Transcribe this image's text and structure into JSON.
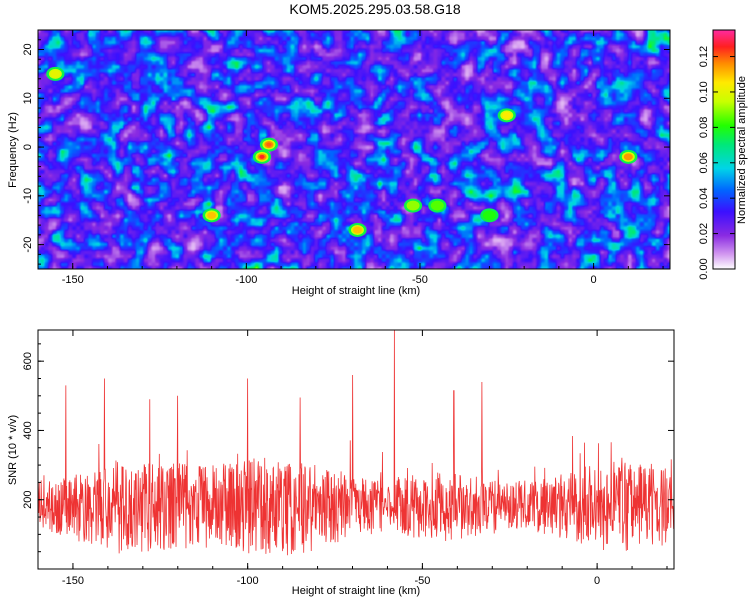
{
  "title": "KOM5.2025.295.03.58.G18",
  "chart_data": [
    {
      "type": "heatmap",
      "xlabel": "Height of straight line (km)",
      "ylabel": "Frequency (Hz)",
      "xlim": [
        -160,
        22
      ],
      "ylim": [
        -25,
        24
      ],
      "xticks": [
        -150,
        -100,
        -50,
        0
      ],
      "yticks": [
        -20,
        -10,
        0,
        10,
        20
      ],
      "colorbar": {
        "label": "Normalized spectral amplitude",
        "range": [
          0,
          0.135
        ],
        "ticks": [
          0.0,
          0.02,
          0.04,
          0.06,
          0.08,
          0.1,
          0.12
        ],
        "tick_labels": [
          "0.00",
          "0.02",
          "0.04",
          "0.06",
          "0.08",
          "0.10",
          "0.12"
        ]
      },
      "hotspots": [
        {
          "x": -95.5,
          "y": -2,
          "value": 0.125
        },
        {
          "x": -93.5,
          "y": 0.5,
          "value": 0.12
        },
        {
          "x": -110,
          "y": -14,
          "value": 0.11
        },
        {
          "x": -68,
          "y": -17,
          "value": 0.11
        },
        {
          "x": 10,
          "y": -2,
          "value": 0.115
        },
        {
          "x": -25,
          "y": 6.5,
          "value": 0.105
        },
        {
          "x": -155,
          "y": 15,
          "value": 0.1
        },
        {
          "x": -52,
          "y": -12,
          "value": 0.09
        },
        {
          "x": -45,
          "y": -12,
          "value": 0.085
        },
        {
          "x": -30,
          "y": -14,
          "value": 0.08
        }
      ]
    },
    {
      "type": "line",
      "xlabel": "Height of straight line (km)",
      "ylabel": "SNR (10 * v/v)",
      "xlim": [
        -160,
        22
      ],
      "ylim": [
        0,
        690
      ],
      "xticks": [
        -150,
        -100,
        -50,
        0
      ],
      "yticks": [
        200,
        400,
        600
      ],
      "series": [
        {
          "color": "#ee3333",
          "peaks": [
            {
              "x": -58,
              "y": 690
            },
            {
              "x": -100,
              "y": 550
            },
            {
              "x": -141,
              "y": 550
            },
            {
              "x": -70,
              "y": 560
            },
            {
              "x": -41,
              "y": 515
            },
            {
              "x": -152,
              "y": 530
            },
            {
              "x": -33,
              "y": 540
            },
            {
              "x": -120,
              "y": 500
            },
            {
              "x": -85,
              "y": 495
            },
            {
              "x": -128,
              "y": 490
            }
          ],
          "baseline_mean": 180,
          "baseline_spread": 110
        }
      ]
    }
  ]
}
